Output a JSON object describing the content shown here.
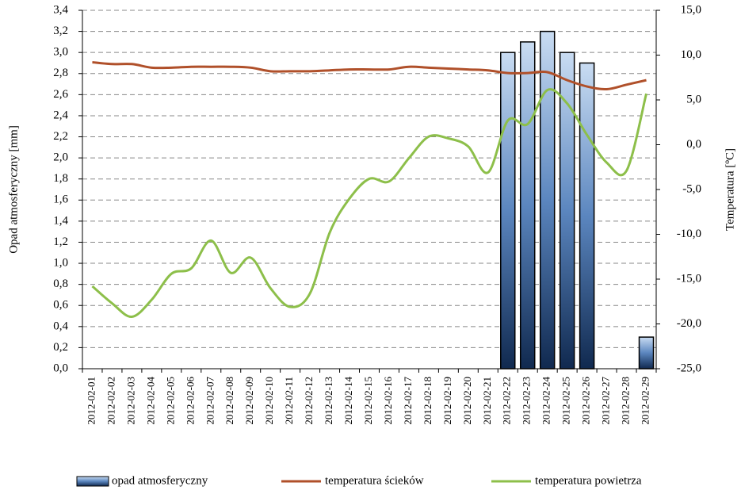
{
  "chart_data": {
    "type": "bar-line",
    "ylabel": "Opad atmosferyczny [mm]",
    "y2label": "Temperatura [ºC]",
    "categories": [
      "2012-02-01",
      "2012-02-02",
      "2012-02-03",
      "2012-02-04",
      "2012-02-05",
      "2012-02-06",
      "2012-02-07",
      "2012-02-08",
      "2012-02-09",
      "2012-02-10",
      "2012-02-11",
      "2012-02-12",
      "2012-02-13",
      "2012-02-14",
      "2012-02-15",
      "2012-02-16",
      "2012-02-17",
      "2012-02-18",
      "2012-02-19",
      "2012-02-20",
      "2012-02-21",
      "2012-02-22",
      "2012-02-23",
      "2012-02-24",
      "2012-02-25",
      "2012-02-26",
      "2012-02-27",
      "2012-02-28",
      "2012-02-29"
    ],
    "series": [
      {
        "name": "opad atmosferyczny",
        "type": "bar",
        "color": "#1f3f6e",
        "values": [
          0,
          0,
          0,
          0,
          0,
          0,
          0,
          0,
          0,
          0,
          0,
          0,
          0,
          0,
          0,
          0,
          0,
          0,
          0,
          0,
          0,
          3.0,
          3.1,
          3.2,
          3.0,
          2.9,
          0,
          0,
          0.3
        ]
      },
      {
        "name": "temperatura ścieków",
        "type": "line",
        "axis": "y2",
        "color": "#b0502a",
        "values": [
          9.2,
          9.0,
          9.0,
          8.6,
          8.6,
          8.7,
          8.7,
          8.7,
          8.6,
          8.2,
          8.2,
          8.2,
          8.3,
          8.4,
          8.4,
          8.4,
          8.7,
          8.6,
          8.5,
          8.4,
          8.3,
          8.0,
          8.0,
          8.1,
          7.2,
          6.5,
          6.2,
          6.7,
          7.2
        ]
      },
      {
        "name": "temperatura powietrza",
        "type": "line",
        "axis": "y2",
        "color": "#8dbf4a",
        "values": [
          -15.8,
          -17.7,
          -19.2,
          -17.3,
          -14.4,
          -13.8,
          -10.7,
          -14.3,
          -12.6,
          -16.0,
          -18.1,
          -16.6,
          -9.8,
          -6.0,
          -3.8,
          -4.1,
          -1.5,
          0.9,
          0.7,
          -0.2,
          -3.1,
          2.7,
          2.3,
          6.1,
          4.6,
          1.1,
          -2.0,
          -2.9,
          5.7
        ]
      }
    ],
    "ylim": [
      0,
      3.4
    ],
    "yticks": [
      {
        "value": 0,
        "label": "0,0"
      },
      {
        "value": 0.2,
        "label": "0,2"
      },
      {
        "value": 0.4,
        "label": "0,4"
      },
      {
        "value": 0.6,
        "label": "0,6"
      },
      {
        "value": 0.8,
        "label": "0,8"
      },
      {
        "value": 1.0,
        "label": "1,0"
      },
      {
        "value": 1.2,
        "label": "1,2"
      },
      {
        "value": 1.4,
        "label": "1,4"
      },
      {
        "value": 1.6,
        "label": "1,6"
      },
      {
        "value": 1.8,
        "label": "1,8"
      },
      {
        "value": 2.0,
        "label": "2,0"
      },
      {
        "value": 2.2,
        "label": "2,2"
      },
      {
        "value": 2.4,
        "label": "2,4"
      },
      {
        "value": 2.6,
        "label": "2,6"
      },
      {
        "value": 2.8,
        "label": "2,8"
      },
      {
        "value": 3.0,
        "label": "3,0"
      },
      {
        "value": 3.2,
        "label": "3,2"
      },
      {
        "value": 3.4,
        "label": "3,4"
      }
    ],
    "y2lim": [
      -25,
      15
    ],
    "y2ticks": [
      {
        "value": -25,
        "label": "-25,0"
      },
      {
        "value": -20,
        "label": "-20,0"
      },
      {
        "value": -15,
        "label": "-15,0"
      },
      {
        "value": -10,
        "label": "-10,0"
      },
      {
        "value": -5,
        "label": "-5,0"
      },
      {
        "value": 0,
        "label": "0,0"
      },
      {
        "value": 5,
        "label": "5,0"
      },
      {
        "value": 10,
        "label": "10,0"
      },
      {
        "value": 15,
        "label": "15,0"
      }
    ],
    "grid": true,
    "legend": "bottom"
  }
}
